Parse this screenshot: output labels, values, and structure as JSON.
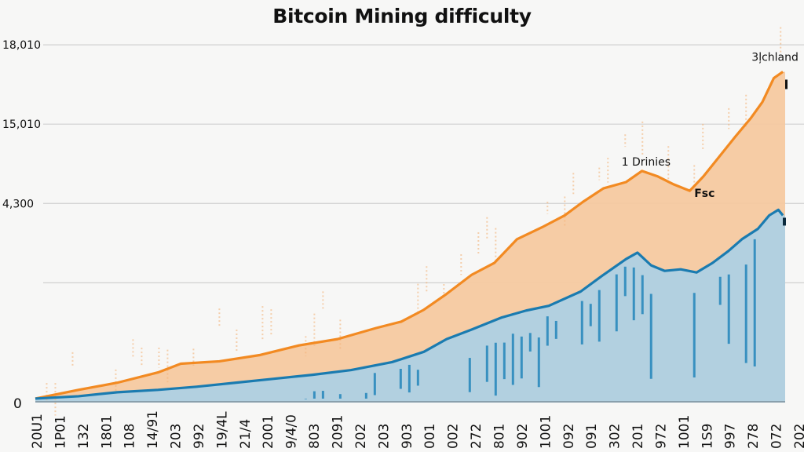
{
  "chart_data": {
    "type": "area",
    "title": "Bitcoin Mining difficulty",
    "xlabel": "",
    "ylabel": "",
    "grid": true,
    "legend": "none",
    "y_ticks": [
      {
        "value": 0,
        "label": "0"
      },
      {
        "value": 1.5,
        "label": ""
      },
      {
        "value": 2.5,
        "label": "4,300"
      },
      {
        "value": 3.5,
        "label": "15,010"
      },
      {
        "value": 4.5,
        "label": "18,010"
      }
    ],
    "ylim": [
      0,
      4.6
    ],
    "x_tick_labels": [
      "20U1",
      "1P01",
      "132",
      "1801",
      "108",
      "14/91",
      "203",
      "992",
      "19/4L",
      "21/4",
      "2001",
      "9/4/0",
      "803",
      "2091",
      "202",
      "203",
      "903",
      "001",
      "002",
      "272",
      "801",
      "902",
      "1001",
      "092",
      "091",
      "302",
      "201",
      "972",
      "1001",
      "1S9",
      "997",
      "278",
      "072",
      "202"
    ],
    "xlim": [
      0,
      33
    ],
    "series": [
      {
        "name": "orange-series",
        "color": "#f28a22",
        "fill": "#f6c9a0",
        "points": [
          [
            0,
            0.04
          ],
          [
            1.9,
            0.15
          ],
          [
            3.6,
            0.24
          ],
          [
            5.4,
            0.37
          ],
          [
            6.4,
            0.48
          ],
          [
            8.1,
            0.51
          ],
          [
            9.9,
            0.59
          ],
          [
            11.6,
            0.71
          ],
          [
            13.3,
            0.79
          ],
          [
            15.0,
            0.93
          ],
          [
            16.1,
            1.01
          ],
          [
            17.1,
            1.16
          ],
          [
            18.1,
            1.36
          ],
          [
            19.2,
            1.6
          ],
          [
            20.2,
            1.75
          ],
          [
            21.2,
            2.05
          ],
          [
            22.3,
            2.2
          ],
          [
            23.3,
            2.35
          ],
          [
            24.1,
            2.52
          ],
          [
            25.0,
            2.69
          ],
          [
            26.0,
            2.77
          ],
          [
            26.7,
            2.91
          ],
          [
            27.4,
            2.84
          ],
          [
            28.1,
            2.74
          ],
          [
            28.8,
            2.66
          ],
          [
            29.4,
            2.84
          ],
          [
            30.1,
            3.09
          ],
          [
            30.8,
            3.34
          ],
          [
            31.5,
            3.58
          ],
          [
            32.0,
            3.78
          ],
          [
            32.5,
            4.08
          ],
          [
            32.9,
            4.16
          ]
        ]
      },
      {
        "name": "blue-series",
        "color": "#1a7bb0",
        "fill": "#aed0e3",
        "points": [
          [
            0,
            0.04
          ],
          [
            1.9,
            0.07
          ],
          [
            3.6,
            0.12
          ],
          [
            5.4,
            0.15
          ],
          [
            7.1,
            0.19
          ],
          [
            8.8,
            0.24
          ],
          [
            10.5,
            0.29
          ],
          [
            12.2,
            0.34
          ],
          [
            13.9,
            0.4
          ],
          [
            15.7,
            0.5
          ],
          [
            17.1,
            0.63
          ],
          [
            18.1,
            0.79
          ],
          [
            19.2,
            0.91
          ],
          [
            20.5,
            1.06
          ],
          [
            21.6,
            1.15
          ],
          [
            22.6,
            1.21
          ],
          [
            24.0,
            1.39
          ],
          [
            25.0,
            1.6
          ],
          [
            26.0,
            1.8
          ],
          [
            26.5,
            1.88
          ],
          [
            27.1,
            1.72
          ],
          [
            27.7,
            1.65
          ],
          [
            28.4,
            1.67
          ],
          [
            29.1,
            1.63
          ],
          [
            29.8,
            1.75
          ],
          [
            30.5,
            1.9
          ],
          [
            31.1,
            2.05
          ],
          [
            31.8,
            2.18
          ],
          [
            32.3,
            2.35
          ],
          [
            32.7,
            2.42
          ],
          [
            32.9,
            2.35
          ]
        ]
      }
    ],
    "annotations": [
      {
        "text": "3ļchland",
        "x": 32.9,
        "y": 4.3,
        "bold": false
      },
      {
        "text": "1 Drinies",
        "x": 25.8,
        "y": 2.98,
        "bold": false
      },
      {
        "text": "Fsc",
        "x": 29.0,
        "y": 2.58,
        "bold": true
      }
    ]
  }
}
